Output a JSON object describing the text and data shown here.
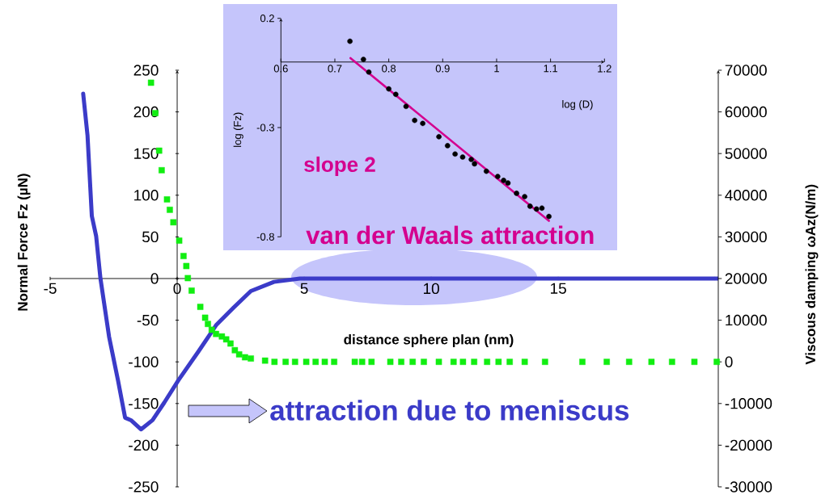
{
  "chart_data": [
    {
      "type": "line",
      "xlabel": "distance sphere plan (nm)",
      "ylabel": "Normal Force Fz (µN)",
      "y2label": "Viscous damping ωAz(N/m)",
      "xlim": [
        -5,
        21.3
      ],
      "xticks": [
        -5,
        0,
        5,
        10,
        15
      ],
      "ylim": [
        -250,
        250
      ],
      "yticks": [
        -250,
        -200,
        -150,
        -100,
        -50,
        0,
        50,
        100,
        150,
        200,
        250
      ],
      "y2lim": [
        -30000,
        70000
      ],
      "y2ticks": [
        -30000,
        -20000,
        -10000,
        0,
        10000,
        20000,
        30000,
        40000,
        50000,
        60000,
        70000
      ],
      "annotations": [
        "van der Waals attraction",
        "attraction due to meniscus"
      ],
      "series": [
        {
          "color": "#3b3bc8",
          "x": [
            -3.7,
            -3.53,
            -3.36,
            -3.19,
            -3.02,
            -2.68,
            -2.33,
            -2.05,
            -1.82,
            -1.42,
            -0.97,
            -0.51,
            0.05,
            0.85,
            1.53,
            2.22,
            2.9,
            3.81,
            4.83,
            10,
            15,
            21.3
          ],
          "values": [
            222,
            172,
            75,
            51,
            0,
            -70,
            -122,
            -167,
            -170,
            -181,
            -170,
            -149,
            -122,
            -87,
            -56,
            -35,
            -15,
            -4,
            0,
            0,
            0,
            0
          ]
        },
        {
          "type": "scatter",
          "axis": "y2",
          "marker": "square",
          "color": "#11ee11",
          "x": [
            -1.03,
            -0.86,
            -0.71,
            -0.61,
            -0.4,
            -0.29,
            -0.15,
            0.08,
            0.25,
            0.36,
            0.42,
            0.57,
            0.91,
            1.1,
            1.21,
            1.36,
            1.53,
            1.76,
            1.93,
            2.1,
            2.27,
            2.44,
            2.67,
            2.9,
            3.46,
            3.83,
            4.27,
            4.64,
            5.08,
            5.45,
            5.81,
            6.18,
            6.99,
            7.28,
            7.65,
            8.39,
            8.82,
            9.27,
            9.71,
            10.3,
            10.88,
            11.25,
            11.69,
            12.2,
            12.65,
            13.09,
            13.68,
            14.48,
            15.95,
            16.91,
            17.79,
            18.67,
            19.48,
            20.36,
            21.24
          ],
          "values": [
            67000,
            59700,
            50700,
            46000,
            39000,
            36500,
            33500,
            29100,
            25400,
            23000,
            20100,
            17100,
            13200,
            10600,
            9100,
            7700,
            6700,
            6100,
            5400,
            4400,
            2800,
            1800,
            1100,
            800,
            300,
            0,
            0,
            0,
            0,
            0,
            0,
            0,
            0,
            0,
            0,
            0,
            0,
            0,
            0,
            0,
            0,
            0,
            0,
            0,
            0,
            0,
            0,
            0,
            0,
            0,
            0,
            0,
            0,
            0,
            0
          ]
        }
      ]
    },
    {
      "type": "scatter",
      "xlabel": "log (D)",
      "ylabel": "log (Fz)",
      "xlim": [
        0.6,
        1.2
      ],
      "xticks": [
        0.6,
        0.7,
        0.8,
        0.9,
        1,
        1.1,
        1.2
      ],
      "ylim": [
        -0.8,
        0.2
      ],
      "yticks": [
        -0.8,
        -0.3,
        0.2
      ],
      "annotations": [
        "slope 2"
      ],
      "series": [
        {
          "marker": "circle",
          "color": "#000000",
          "x": [
            0.728,
            0.753,
            0.763,
            0.8,
            0.813,
            0.832,
            0.848,
            0.863,
            0.893,
            0.909,
            0.923,
            0.937,
            0.953,
            0.959,
            0.981,
            1.002,
            1.013,
            1.021,
            1.037,
            1.052,
            1.062,
            1.074,
            1.084,
            1.097
          ],
          "values": [
            0.095,
            0.012,
            -0.046,
            -0.123,
            -0.148,
            -0.203,
            -0.267,
            -0.281,
            -0.342,
            -0.383,
            -0.421,
            -0.435,
            -0.446,
            -0.466,
            -0.5,
            -0.524,
            -0.542,
            -0.554,
            -0.601,
            -0.616,
            -0.66,
            -0.673,
            -0.669,
            -0.707
          ]
        },
        {
          "type": "line",
          "color": "#d4008f",
          "x": [
            0.729,
            1.097
          ],
          "values": [
            0.018,
            -0.727
          ]
        }
      ]
    }
  ]
}
